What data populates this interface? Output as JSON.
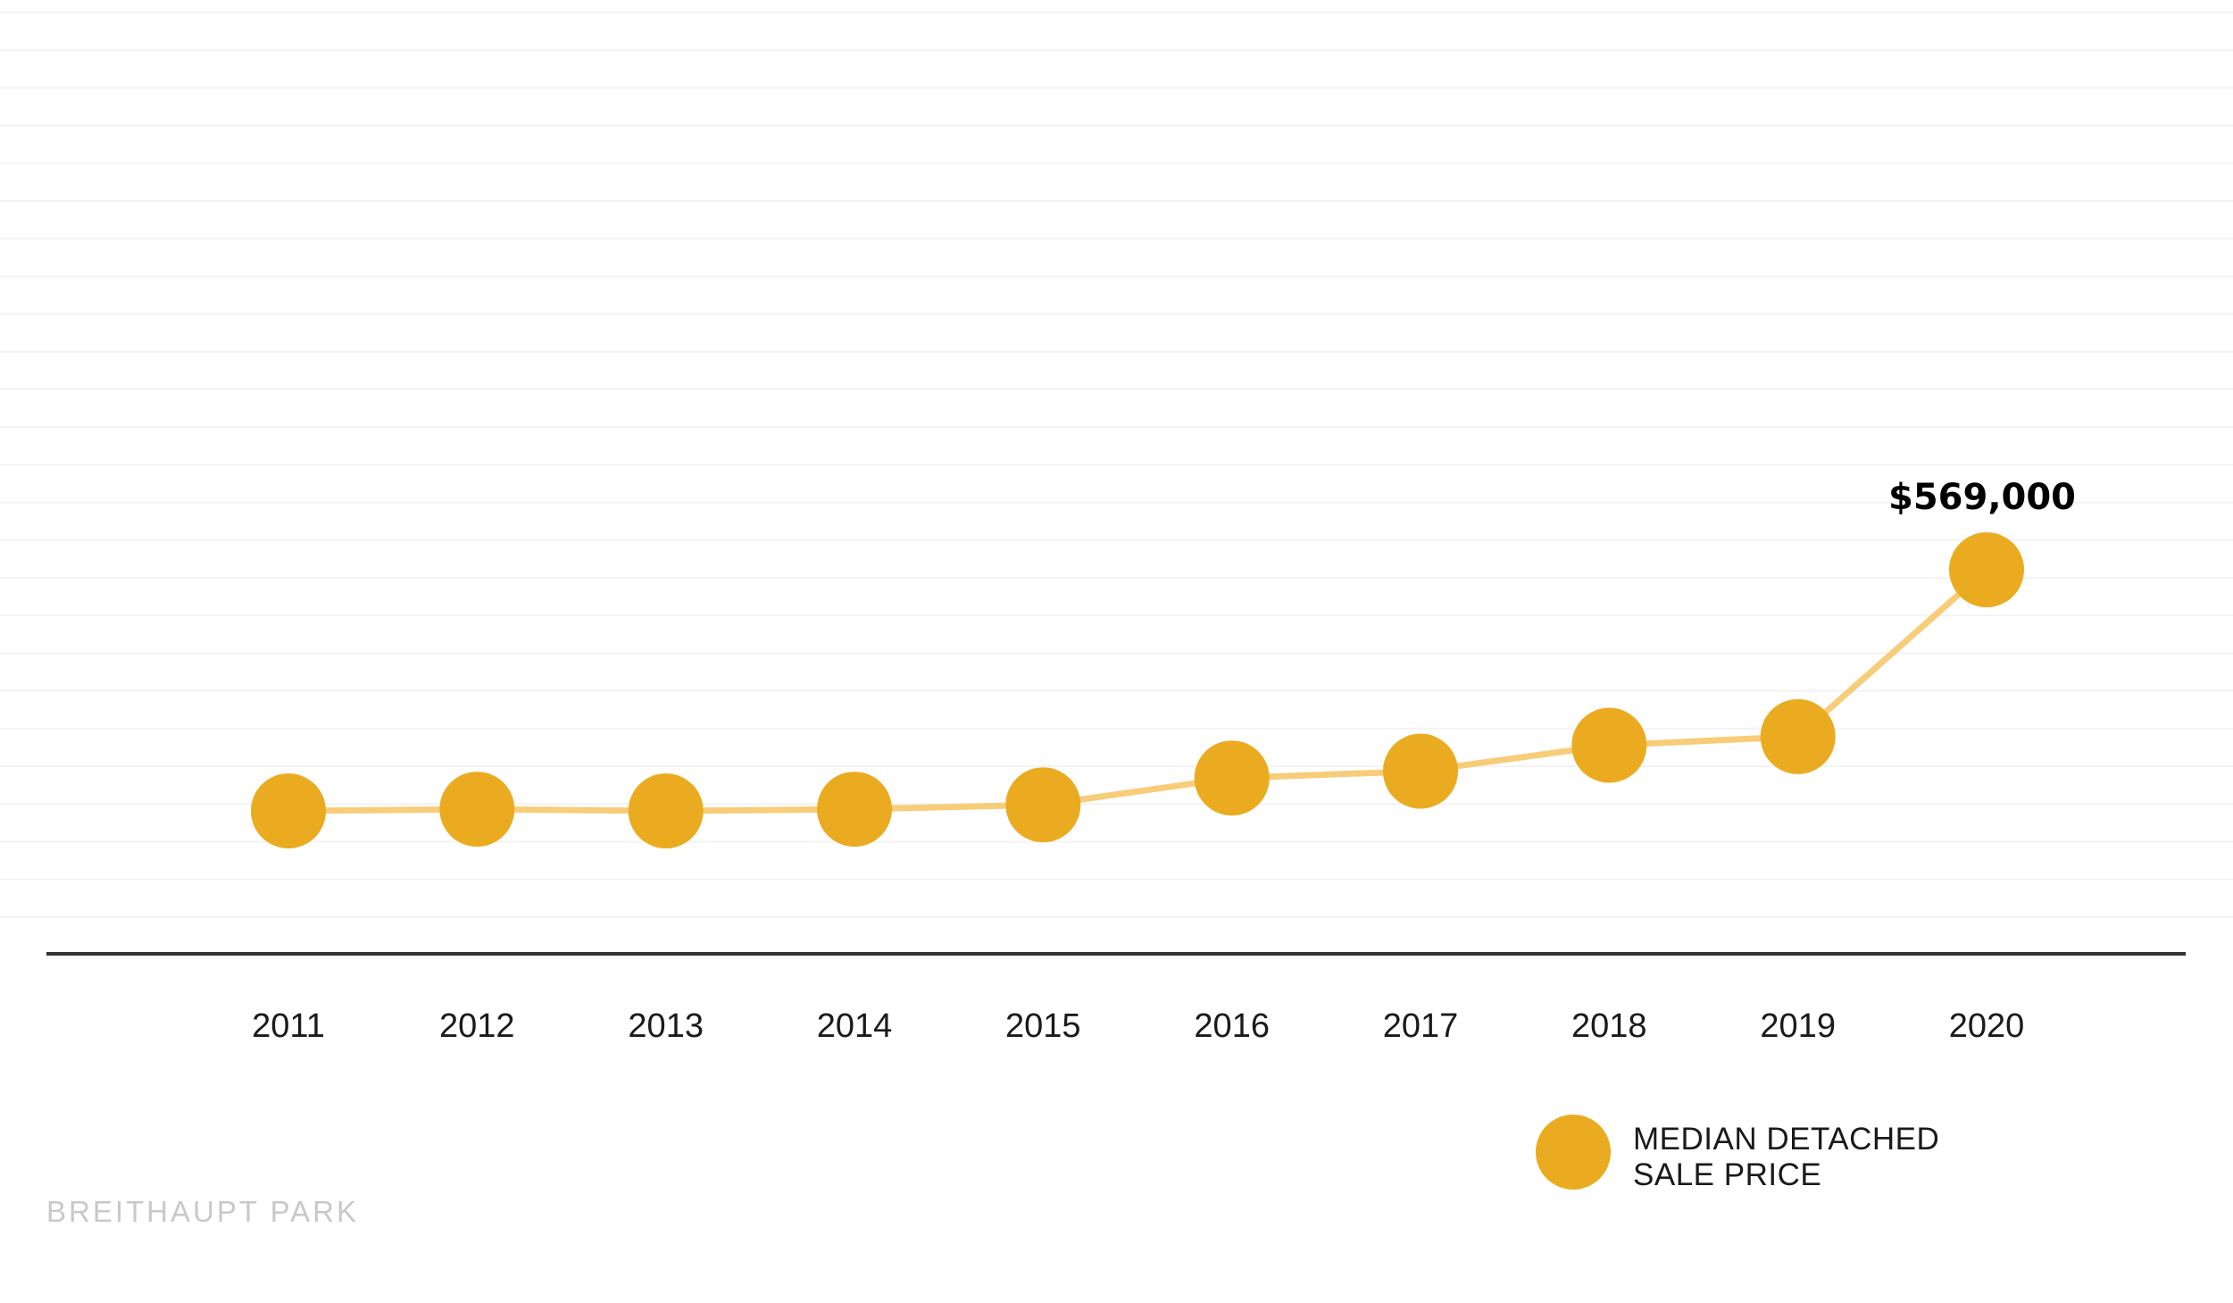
{
  "chart_data": {
    "type": "line",
    "title": "",
    "xlabel": "",
    "ylabel": "",
    "categories": [
      "2011",
      "2012",
      "2013",
      "2014",
      "2015",
      "2016",
      "2017",
      "2018",
      "2019",
      "2020"
    ],
    "series": [
      {
        "name": "MEDIAN DETACHED SALE PRICE",
        "values": [
          290000,
          292000,
          290000,
          292000,
          297000,
          328000,
          336000,
          366000,
          376000,
          569000
        ],
        "color": "#ebab21",
        "line_color": "#f8cd79"
      }
    ],
    "annotations": [
      {
        "category": "2020",
        "text": "$569,000"
      }
    ],
    "legend": {
      "placement": "bottom-right",
      "lines": [
        "MEDIAN DETACHED",
        "SALE PRICE"
      ]
    },
    "grid": true,
    "axis_color": "#333333"
  },
  "watermark": "BREITHAUPT  PARK"
}
